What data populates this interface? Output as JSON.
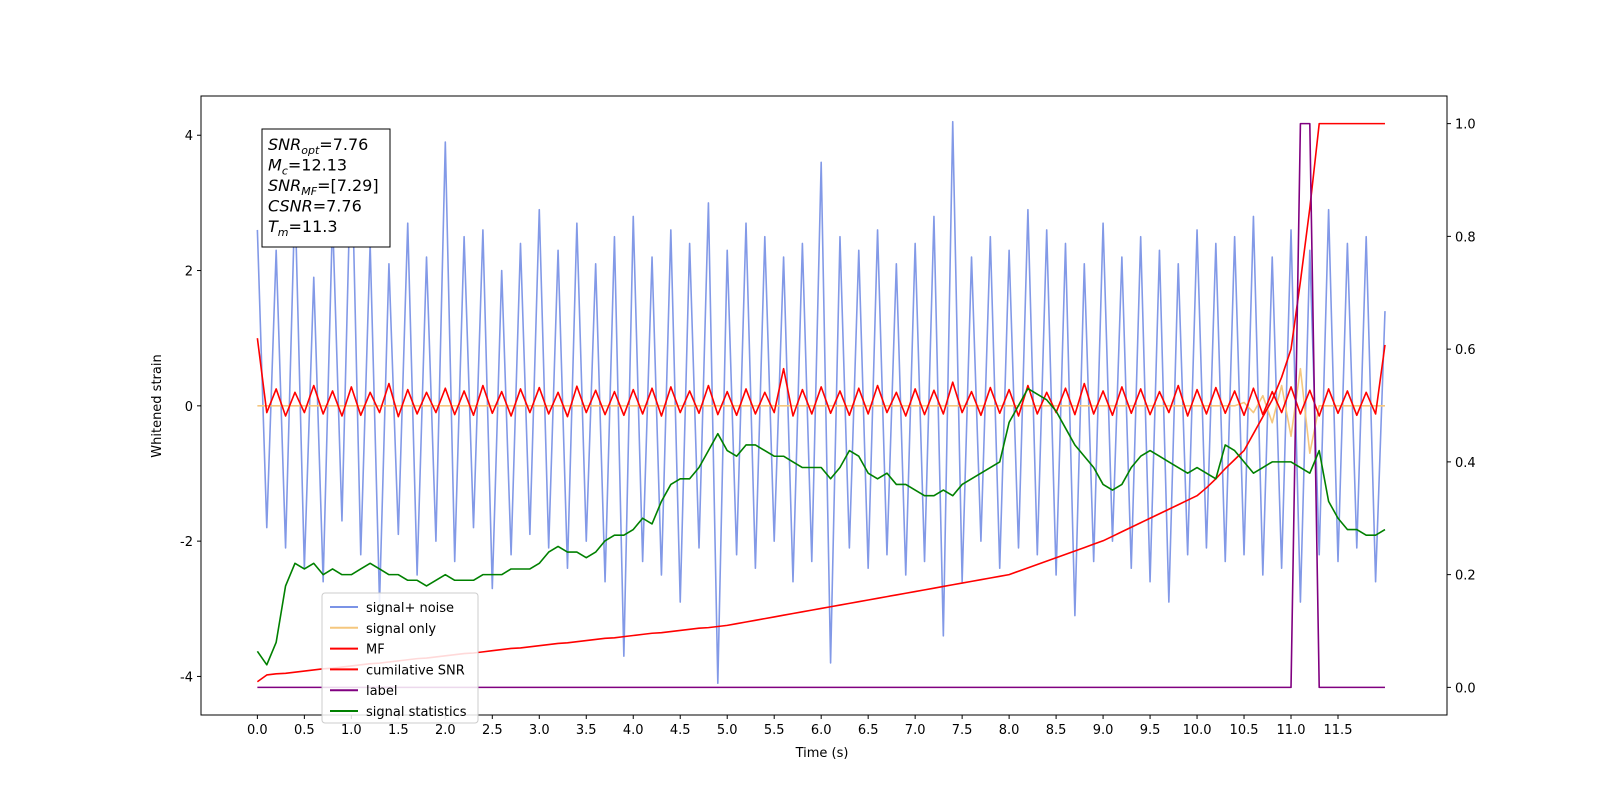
{
  "chart_data": {
    "type": "line",
    "xlabel": "Time (s)",
    "ylabel": "Whitened strain",
    "legend": "lower left",
    "annotation": [
      {
        "symbol": "SNR",
        "subscript": "opt",
        "text": "=7.76"
      },
      {
        "symbol": "M",
        "subscript": "c",
        "text": "=12.13"
      },
      {
        "symbol": "SNR",
        "subscript": "MF",
        "text": "=[7.29]"
      },
      {
        "symbol": "CSNR",
        "text": "=7.76"
      },
      {
        "symbol": "T",
        "subscript": "m",
        "text": "=11.3"
      }
    ],
    "xlim": [
      -0.6,
      12.66
    ],
    "ylim": [
      -4.57,
      4.58
    ],
    "y2lim": [
      -0.049,
      1.049
    ],
    "xticks": [
      {
        "value": 0,
        "label": "0.0"
      },
      0.5,
      {
        "value": 1,
        "label": "1.0"
      },
      1.5,
      {
        "value": 2,
        "label": "2.0"
      },
      2.5,
      {
        "value": 3,
        "label": "3.0"
      },
      3.5,
      {
        "value": 4,
        "label": "4.0"
      },
      4.5,
      {
        "value": 5,
        "label": "5.0"
      },
      5.5,
      {
        "value": 6,
        "label": "6.0"
      },
      6.5,
      {
        "value": 7,
        "label": "7.0"
      },
      7.5,
      {
        "value": 8,
        "label": "8.0"
      },
      8.5,
      {
        "value": 9,
        "label": "9.0"
      },
      9.5,
      {
        "value": 10,
        "label": "10.0"
      },
      10.5,
      {
        "value": 11,
        "label": "11.0"
      },
      11.5
    ],
    "yticks": [
      -4,
      -2,
      0,
      2,
      4
    ],
    "y2ticks": [
      {
        "value": 0,
        "label": "0.0"
      },
      0.2,
      0.4,
      0.6,
      0.8,
      {
        "value": 1,
        "label": "1.0"
      }
    ],
    "x": [
      0,
      0.1,
      0.2,
      0.3,
      0.4,
      0.5,
      0.6,
      0.7,
      0.8,
      0.9,
      1,
      1.1,
      1.2,
      1.3,
      1.4,
      1.5,
      1.6,
      1.7,
      1.8,
      1.9,
      2,
      2.1,
      2.2,
      2.3,
      2.4,
      2.5,
      2.6,
      2.7,
      2.8,
      2.9,
      3,
      3.1,
      3.2,
      3.3,
      3.4,
      3.5,
      3.6,
      3.7,
      3.8,
      3.9,
      4,
      4.1,
      4.2,
      4.3,
      4.4,
      4.5,
      4.6,
      4.7,
      4.8,
      4.9,
      5,
      5.1,
      5.2,
      5.3,
      5.4,
      5.5,
      5.6,
      5.7,
      5.8,
      5.9,
      6,
      6.1,
      6.2,
      6.3,
      6.4,
      6.5,
      6.6,
      6.7,
      6.8,
      6.9,
      7,
      7.1,
      7.2,
      7.3,
      7.4,
      7.5,
      7.6,
      7.7,
      7.8,
      7.9,
      8,
      8.1,
      8.2,
      8.3,
      8.4,
      8.5,
      8.6,
      8.7,
      8.8,
      8.9,
      9,
      9.1,
      9.2,
      9.3,
      9.4,
      9.5,
      9.6,
      9.7,
      9.8,
      9.9,
      10,
      10.1,
      10.2,
      10.3,
      10.4,
      10.5,
      10.6,
      10.7,
      10.8,
      10.9,
      11,
      11.1,
      11.2,
      11.3,
      11.4,
      11.5,
      11.6,
      11.7,
      11.8,
      11.9,
      12
    ],
    "series": [
      {
        "name": "signal+ noise",
        "color": "#7b93e6",
        "axis": "y",
        "values": [
          2.6,
          -1.8,
          2.3,
          -2.1,
          3.1,
          -2.4,
          1.9,
          -2.6,
          2.8,
          -1.7,
          3.9,
          -2.2,
          2.4,
          -2.9,
          2.1,
          -1.9,
          2.7,
          -2.5,
          2.2,
          -2.0,
          3.9,
          -2.3,
          2.5,
          -1.8,
          2.6,
          -2.7,
          2.0,
          -2.2,
          2.4,
          -1.9,
          2.9,
          -2.1,
          2.3,
          -2.4,
          2.7,
          -2.0,
          2.1,
          -2.6,
          2.5,
          -3.7,
          2.8,
          -2.3,
          2.2,
          -2.5,
          2.6,
          -2.9,
          2.4,
          -2.1,
          3.0,
          -4.1,
          2.3,
          -2.2,
          2.7,
          -2.4,
          2.5,
          -2.0,
          2.2,
          -2.6,
          2.4,
          -2.3,
          3.6,
          -3.8,
          2.5,
          -2.1,
          2.3,
          -2.4,
          2.6,
          -2.2,
          2.1,
          -2.5,
          2.4,
          -2.3,
          2.8,
          -3.4,
          4.2,
          -2.6,
          2.2,
          -2.0,
          2.5,
          -2.4,
          2.3,
          -2.1,
          2.9,
          -2.2,
          2.6,
          -2.5,
          2.4,
          -3.1,
          2.1,
          -2.3,
          2.7,
          -2.0,
          2.2,
          -2.4,
          2.5,
          -2.6,
          2.3,
          -2.9,
          2.1,
          -2.2,
          2.6,
          -2.1,
          2.4,
          -2.3,
          2.5,
          -2.2,
          2.8,
          -2.5,
          2.2,
          -2.4,
          2.6,
          -2.9,
          2.3,
          -2.2,
          2.9,
          -2.3,
          2.4,
          -2.1,
          2.5,
          -2.6,
          1.4
        ]
      },
      {
        "name": "signal only",
        "color": "#f5c77e",
        "axis": "y",
        "values": [
          0,
          0,
          0,
          0,
          0,
          0,
          0,
          0,
          0,
          0,
          0,
          0,
          0,
          0,
          0,
          0,
          0,
          0,
          0,
          0,
          0,
          0,
          0,
          0,
          0,
          0,
          0,
          0,
          0,
          0,
          0,
          0,
          0,
          0,
          0,
          0,
          0,
          0,
          0,
          0,
          0,
          0,
          0,
          0,
          0,
          0,
          0,
          0,
          0,
          0,
          0,
          0,
          0,
          0,
          0,
          0,
          0,
          0,
          0,
          0,
          0,
          0,
          0,
          0,
          0,
          0,
          0,
          0,
          0,
          0,
          0,
          0,
          0,
          0,
          0,
          0,
          0,
          0,
          0,
          0,
          0,
          0,
          0,
          0,
          0,
          0,
          0,
          0,
          0,
          0,
          0,
          0,
          0,
          0,
          0,
          0,
          0,
          0,
          0,
          0,
          0,
          0,
          0,
          0,
          0,
          0.05,
          -0.1,
          0.15,
          -0.25,
          0.3,
          -0.45,
          0.55,
          -0.7,
          0,
          0,
          0,
          0,
          0,
          0,
          0,
          0
        ]
      },
      {
        "name": "MF",
        "color": "#ff0000",
        "axis": "y",
        "values": [
          1.0,
          -0.1,
          0.25,
          -0.15,
          0.2,
          -0.1,
          0.3,
          -0.12,
          0.22,
          -0.15,
          0.28,
          -0.14,
          0.2,
          -0.1,
          0.33,
          -0.16,
          0.24,
          -0.12,
          0.2,
          -0.1,
          0.26,
          -0.13,
          0.22,
          -0.14,
          0.3,
          -0.11,
          0.21,
          -0.15,
          0.25,
          -0.1,
          0.27,
          -0.12,
          0.2,
          -0.16,
          0.29,
          -0.1,
          0.23,
          -0.13,
          0.21,
          -0.14,
          0.24,
          -0.12,
          0.26,
          -0.15,
          0.28,
          -0.1,
          0.22,
          -0.11,
          0.3,
          -0.13,
          0.21,
          -0.14,
          0.25,
          -0.12,
          0.2,
          -0.1,
          0.55,
          -0.15,
          0.24,
          -0.12,
          0.28,
          -0.11,
          0.22,
          -0.14,
          0.26,
          -0.12,
          0.3,
          -0.1,
          0.2,
          -0.15,
          0.25,
          -0.13,
          0.23,
          -0.12,
          0.35,
          -0.1,
          0.21,
          -0.14,
          0.27,
          -0.11,
          0.24,
          -0.15,
          0.3,
          -0.12,
          0.2,
          -0.1,
          0.26,
          -0.13,
          0.33,
          -0.12,
          0.22,
          -0.14,
          0.28,
          -0.11,
          0.25,
          -0.13,
          0.21,
          -0.1,
          0.3,
          -0.15,
          0.24,
          -0.12,
          0.27,
          -0.11,
          0.22,
          -0.14,
          0.26,
          -0.13,
          0.21,
          -0.1,
          0.28,
          -0.12,
          0.23,
          -0.15,
          0.25,
          -0.11,
          0.22,
          -0.14,
          0.2,
          -0.12,
          0.9
        ]
      },
      {
        "name": "cumilative SNR",
        "color": "#ff0000",
        "axis": "y2",
        "values": [
          0.01,
          0.022,
          0.024,
          0.025,
          0.027,
          0.029,
          0.031,
          0.033,
          0.034,
          0.036,
          0.038,
          0.04,
          0.042,
          0.043,
          0.045,
          0.047,
          0.049,
          0.051,
          0.052,
          0.054,
          0.056,
          0.058,
          0.06,
          0.061,
          0.063,
          0.065,
          0.067,
          0.069,
          0.07,
          0.072,
          0.074,
          0.076,
          0.078,
          0.079,
          0.081,
          0.083,
          0.085,
          0.087,
          0.088,
          0.09,
          0.092,
          0.094,
          0.096,
          0.097,
          0.099,
          0.101,
          0.103,
          0.105,
          0.106,
          0.108,
          0.11,
          0.113,
          0.116,
          0.119,
          0.122,
          0.125,
          0.128,
          0.131,
          0.134,
          0.137,
          0.14,
          0.143,
          0.146,
          0.149,
          0.152,
          0.155,
          0.158,
          0.161,
          0.164,
          0.167,
          0.17,
          0.173,
          0.176,
          0.179,
          0.182,
          0.185,
          0.188,
          0.191,
          0.194,
          0.197,
          0.2,
          0.206,
          0.212,
          0.218,
          0.224,
          0.23,
          0.236,
          0.242,
          0.248,
          0.254,
          0.26,
          0.268,
          0.276,
          0.284,
          0.292,
          0.3,
          0.308,
          0.316,
          0.324,
          0.332,
          0.34,
          0.354,
          0.37,
          0.388,
          0.404,
          0.42,
          0.45,
          0.48,
          0.51,
          0.55,
          0.6,
          0.72,
          0.85,
          1.0,
          1.0,
          1.0,
          1.0,
          1.0,
          1.0,
          1.0,
          1.0
        ]
      },
      {
        "name": "label",
        "color": "#800080",
        "axis": "y2",
        "values": [
          0,
          0,
          0,
          0,
          0,
          0,
          0,
          0,
          0,
          0,
          0,
          0,
          0,
          0,
          0,
          0,
          0,
          0,
          0,
          0,
          0,
          0,
          0,
          0,
          0,
          0,
          0,
          0,
          0,
          0,
          0,
          0,
          0,
          0,
          0,
          0,
          0,
          0,
          0,
          0,
          0,
          0,
          0,
          0,
          0,
          0,
          0,
          0,
          0,
          0,
          0,
          0,
          0,
          0,
          0,
          0,
          0,
          0,
          0,
          0,
          0,
          0,
          0,
          0,
          0,
          0,
          0,
          0,
          0,
          0,
          0,
          0,
          0,
          0,
          0,
          0,
          0,
          0,
          0,
          0,
          0,
          0,
          0,
          0,
          0,
          0,
          0,
          0,
          0,
          0,
          0,
          0,
          0,
          0,
          0,
          0,
          0,
          0,
          0,
          0,
          0,
          0,
          0,
          0,
          0,
          0,
          0,
          0,
          0,
          0,
          0,
          1,
          1,
          0,
          0,
          0,
          0,
          0,
          0,
          0,
          0
        ]
      },
      {
        "name": "signal statistics",
        "color": "#008000",
        "axis": "y2",
        "values": [
          0.064,
          0.04,
          0.08,
          0.18,
          0.22,
          0.21,
          0.22,
          0.2,
          0.21,
          0.2,
          0.2,
          0.21,
          0.22,
          0.21,
          0.2,
          0.2,
          0.19,
          0.19,
          0.18,
          0.19,
          0.2,
          0.19,
          0.19,
          0.19,
          0.2,
          0.2,
          0.2,
          0.21,
          0.21,
          0.21,
          0.22,
          0.24,
          0.25,
          0.24,
          0.24,
          0.23,
          0.24,
          0.26,
          0.27,
          0.27,
          0.28,
          0.3,
          0.29,
          0.33,
          0.36,
          0.37,
          0.37,
          0.39,
          0.42,
          0.45,
          0.42,
          0.41,
          0.43,
          0.43,
          0.42,
          0.41,
          0.41,
          0.4,
          0.39,
          0.39,
          0.39,
          0.37,
          0.39,
          0.42,
          0.41,
          0.38,
          0.37,
          0.38,
          0.36,
          0.36,
          0.35,
          0.34,
          0.34,
          0.35,
          0.34,
          0.36,
          0.37,
          0.38,
          0.39,
          0.4,
          0.47,
          0.5,
          0.53,
          0.52,
          0.51,
          0.49,
          0.46,
          0.43,
          0.41,
          0.39,
          0.36,
          0.35,
          0.36,
          0.39,
          0.41,
          0.42,
          0.41,
          0.4,
          0.39,
          0.38,
          0.39,
          0.38,
          0.37,
          0.43,
          0.42,
          0.4,
          0.38,
          0.39,
          0.4,
          0.4,
          0.4,
          0.39,
          0.38,
          0.42,
          0.33,
          0.3,
          0.28,
          0.28,
          0.27,
          0.27,
          0.28
        ]
      }
    ]
  }
}
